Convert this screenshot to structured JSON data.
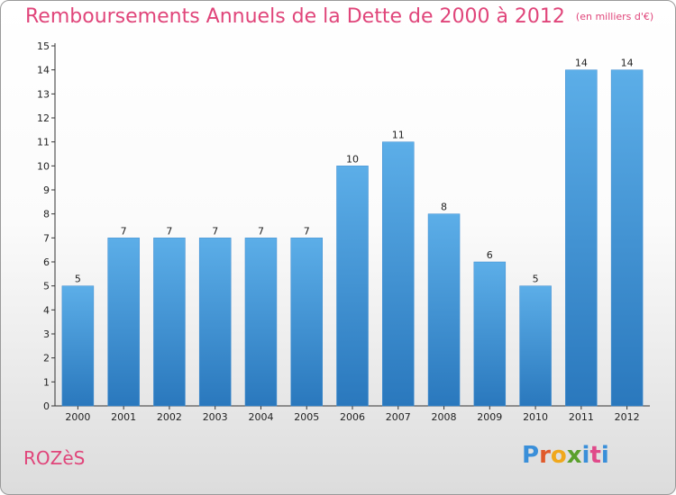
{
  "header": {
    "title": "Remboursements Annuels de la Dette de 2000 à 2012",
    "unit": "(en milliers d'€)"
  },
  "footer": {
    "entity": "ROZèS",
    "brand_letters": [
      "P",
      "r",
      "o",
      "x",
      "i",
      "t",
      "i"
    ],
    "brand_colors": [
      "#3a8fd9",
      "#e05a2b",
      "#f0a81c",
      "#5aa02c",
      "#3a8fd9",
      "#e04a8a",
      "#3a8fd9"
    ]
  },
  "colors": {
    "title": "#e0457a",
    "bar_light": "#5caee8",
    "bar_dark": "#2a78bd"
  },
  "chart_data": {
    "type": "bar",
    "categories": [
      "2000",
      "2001",
      "2002",
      "2003",
      "2004",
      "2005",
      "2006",
      "2007",
      "2008",
      "2009",
      "2010",
      "2011",
      "2012"
    ],
    "values": [
      5,
      7,
      7,
      7,
      7,
      7,
      10,
      11,
      8,
      6,
      5,
      14,
      14
    ],
    "ylim": [
      0,
      15
    ],
    "yticks": [
      0,
      1,
      2,
      3,
      4,
      5,
      6,
      7,
      8,
      9,
      10,
      11,
      12,
      13,
      14,
      15
    ],
    "grid": false,
    "legend": "none"
  }
}
